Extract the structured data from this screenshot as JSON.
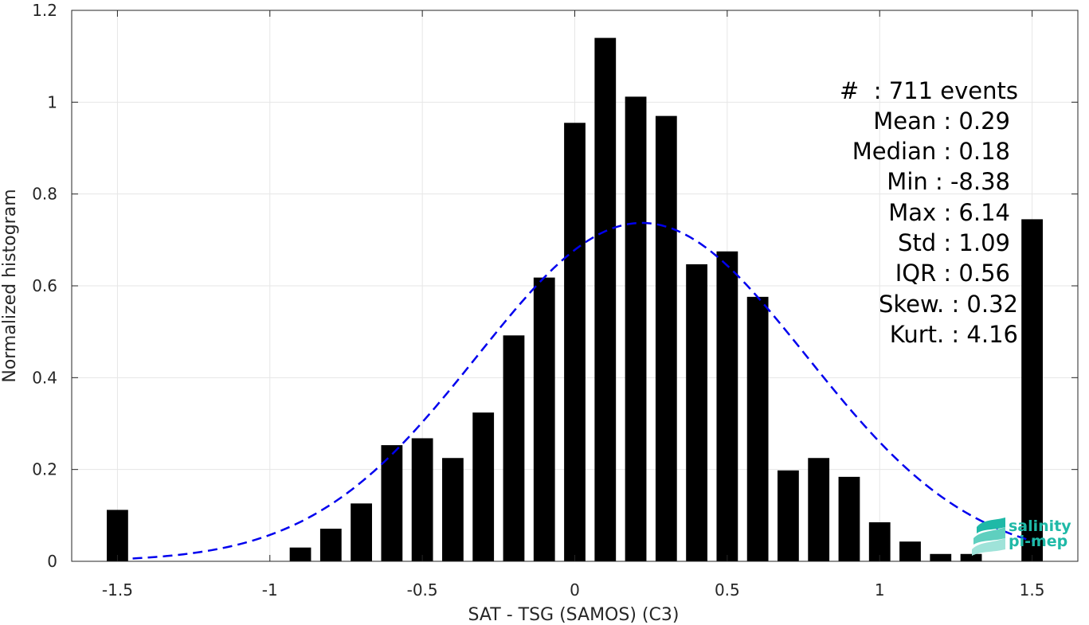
{
  "chart_data": {
    "type": "bar",
    "xlabel": "SAT - TSG (SAMOS) (C3)",
    "ylabel": "Normalized histogram",
    "xlim": [
      -1.65,
      1.65
    ],
    "ylim": [
      0,
      1.2
    ],
    "grid": true,
    "xticks": [
      -1.5,
      -1,
      -0.5,
      0,
      0.5,
      1,
      1.5
    ],
    "xtick_labels": [
      "-1.5",
      "-1",
      "-0.5",
      "0",
      "0.5",
      "1",
      "1.5"
    ],
    "yticks": [
      0,
      0.2,
      0.4,
      0.6,
      0.8,
      1,
      1.2
    ],
    "ytick_labels": [
      "0",
      "0.2",
      "0.4",
      "0.6",
      "0.8",
      "1",
      "1.2"
    ],
    "bar_width": 0.07,
    "bars": {
      "x": [
        -1.5,
        -0.9,
        -0.8,
        -0.7,
        -0.6,
        -0.5,
        -0.4,
        -0.3,
        -0.2,
        -0.1,
        0.0,
        0.1,
        0.2,
        0.3,
        0.4,
        0.5,
        0.6,
        0.7,
        0.8,
        0.9,
        1.0,
        1.1,
        1.2,
        1.3,
        1.5
      ],
      "values": [
        0.112,
        0.03,
        0.071,
        0.126,
        0.253,
        0.268,
        0.225,
        0.324,
        0.492,
        0.618,
        0.955,
        1.14,
        1.012,
        0.97,
        0.647,
        0.675,
        0.576,
        0.198,
        0.225,
        0.184,
        0.085,
        0.043,
        0.016,
        0.016,
        0.745
      ],
      "color": "#000000"
    },
    "fit_curve": {
      "style": "dashed",
      "color": "#0000ee",
      "x_range": [
        -1.45,
        1.5
      ],
      "peak": 0.737,
      "mean": 0.22,
      "std": 0.54
    },
    "stats_lines": [
      "#  : 711 events",
      "Mean : 0.29",
      "Median : 0.18",
      "Min : -8.38",
      "Max : 6.14",
      "Std : 1.09",
      "IQR : 0.56",
      "Skew. : 0.32",
      "Kurt. : 4.16"
    ]
  },
  "logo": {
    "line1": "salinity",
    "line2": "pi-mep",
    "color": "#1fb9a7"
  }
}
